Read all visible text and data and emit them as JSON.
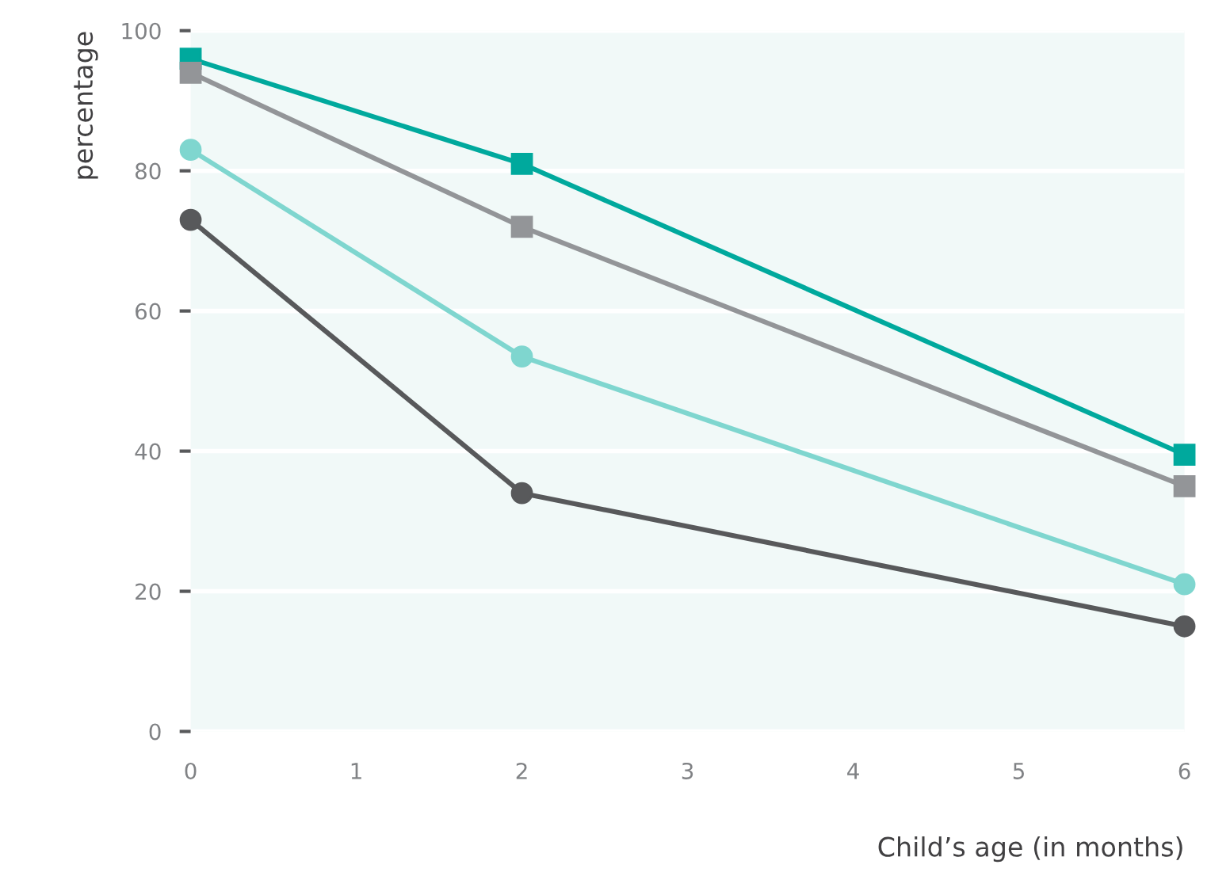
{
  "chart_data": {
    "type": "line",
    "xlabel": "Child’s age (in months)",
    "ylabel": "percentage",
    "x": [
      0,
      2,
      6
    ],
    "series": [
      {
        "color": "#00a99d",
        "marker": "square",
        "values": [
          96,
          81,
          39.5
        ]
      },
      {
        "color": "#939598",
        "marker": "square",
        "values": [
          94,
          72,
          35
        ]
      },
      {
        "color": "#7fd6cf",
        "marker": "circle",
        "values": [
          83,
          53.5,
          21
        ]
      },
      {
        "color": "#58595b",
        "marker": "circle",
        "values": [
          73,
          34,
          15
        ]
      }
    ],
    "xlim": [
      0,
      6
    ],
    "xticks": [
      0,
      1,
      2,
      3,
      4,
      5,
      6
    ],
    "ylim": [
      0,
      100
    ],
    "yticks": [
      0,
      20,
      40,
      60,
      80,
      100
    ],
    "grid": "y",
    "legend": false,
    "line_style": "solid"
  }
}
